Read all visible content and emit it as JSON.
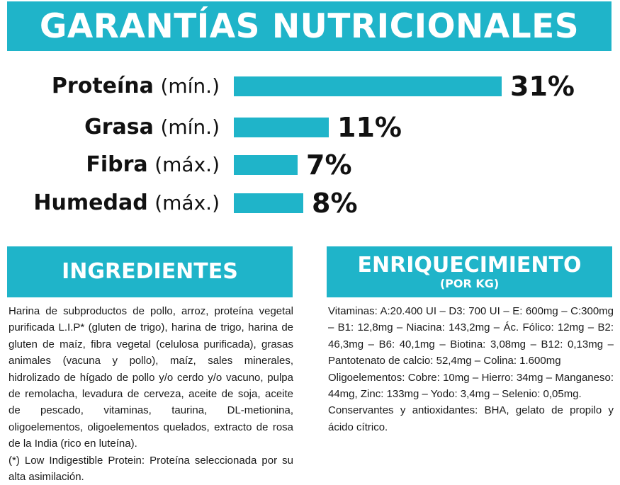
{
  "header": {
    "title": "GARANTÍAS NUTRICIONALES"
  },
  "nutrients": [
    {
      "name": "Proteína",
      "qualifier": "(mín.)",
      "value": "31%",
      "percent": 31
    },
    {
      "name": "Grasa",
      "qualifier": "(mín.)",
      "value": "11%",
      "percent": 11
    },
    {
      "name": "Fibra",
      "qualifier": "(máx.)",
      "value": "7%",
      "percent": 7
    },
    {
      "name": "Humedad",
      "qualifier": "(máx.)",
      "value": "8%",
      "percent": 8
    }
  ],
  "ingredients": {
    "title": "INGREDIENTES",
    "text": "Harina de subproductos de pollo, arroz, proteína vegetal purificada L.I.P* (gluten de trigo), harina de trigo, harina de gluten de maíz, fibra vegetal (celulosa purificada), grasas animales (vacuna y pollo), maíz, sales minerales, hidrolizado de hígado de pollo y/o cerdo y/o vacuno, pulpa de remolacha, levadura de cerveza, aceite de soja, aceite de pescado, vitaminas, taurina, DL-metionina, oligoelementos, oligoelementos quelados, extracto de rosa de la India (rico en luteína).",
    "note": "(*) Low Indigestible Protein: Proteína seleccionada por su alta asimilación."
  },
  "enrichment": {
    "title": "ENRIQUECIMIENTO",
    "subtitle": "(POR KG)",
    "vitamins": "Vitaminas: A:20.400 UI – D3: 700 UI – E: 600mg – C:300mg – B1: 12,8mg – Niacina: 143,2mg – Ác. Fólico: 12mg – B2: 46,3mg – B6: 40,1mg – Biotina: 3,08mg – B12: 0,13mg – Pantotenato de calcio: 52,4mg – Colina: 1.600mg",
    "trace": "Oligoelementos: Cobre: 10mg – Hierro: 34mg – Manganeso: 44mg, Zinc: 133mg – Yodo: 3,4mg – Selenio: 0,05mg.",
    "preservatives": "Conservantes y antioxidantes: BHA, gelato de propilo y ácido cítrico."
  }
}
